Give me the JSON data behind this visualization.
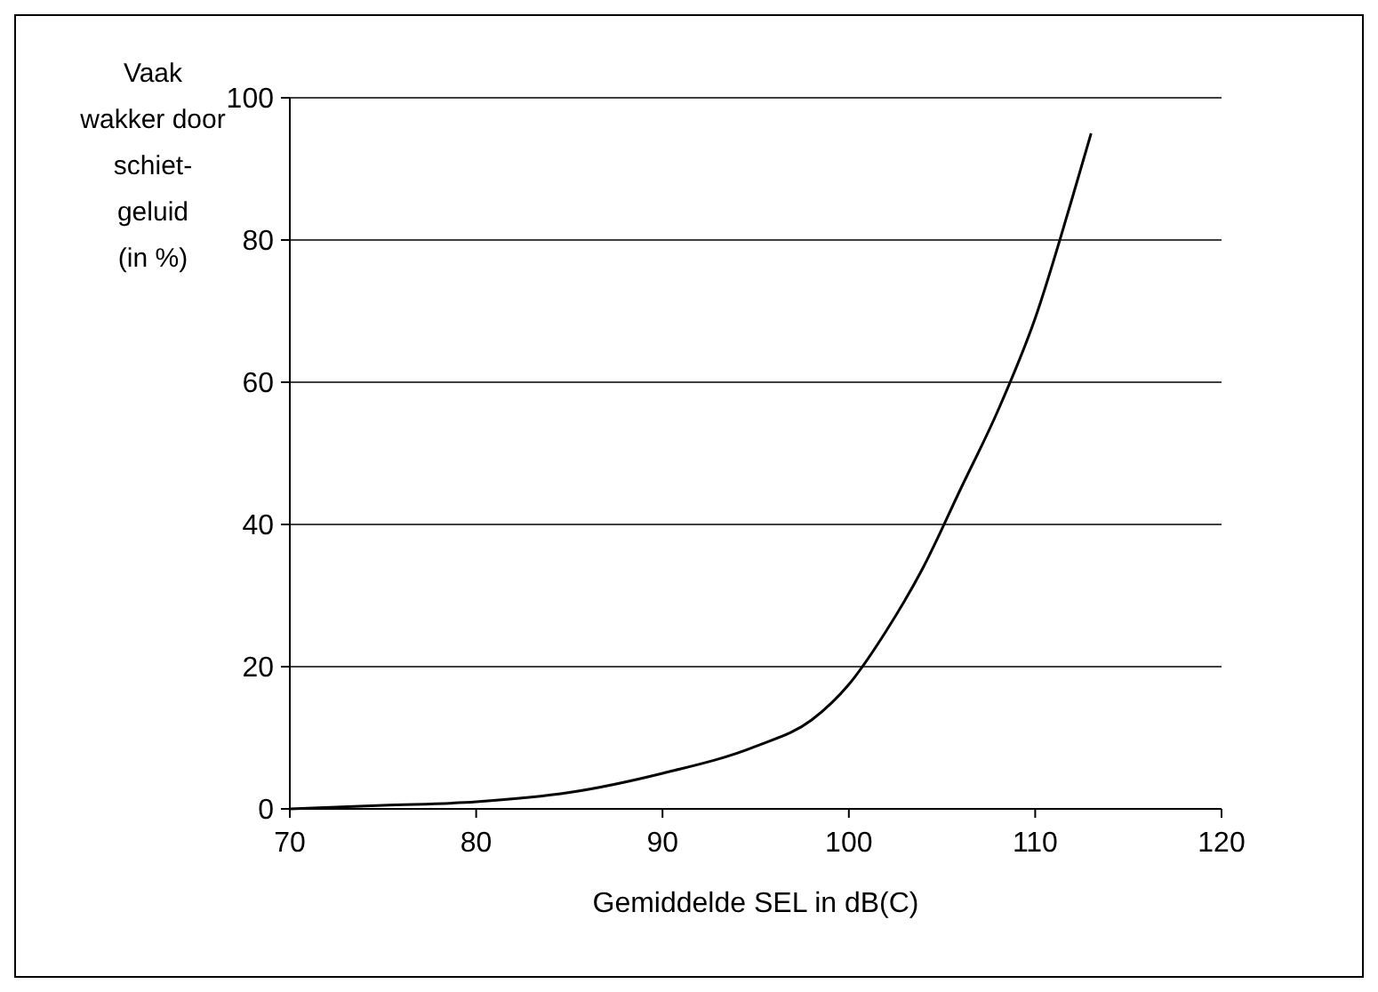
{
  "chart_data": {
    "type": "line",
    "xlabel": "Gemiddelde SEL in dB(C)",
    "ylabel": "Vaak\nwakker door\nschiet-\ngeluid\n(in %)",
    "series": [
      {
        "color": "#000000",
        "x": [
          70,
          75,
          80,
          85,
          90,
          95,
          98,
          100,
          102,
          104,
          106,
          108,
          110,
          112,
          113
        ],
        "values": [
          0,
          0.5,
          1,
          2.3,
          5,
          8.8,
          12.5,
          17.5,
          25,
          34,
          45,
          56,
          69,
          86,
          95
        ]
      }
    ],
    "xlim": [
      70,
      120
    ],
    "xticks": [
      70,
      80,
      90,
      100,
      110,
      120
    ],
    "ylim": [
      0,
      100
    ],
    "yticks": [
      0,
      20,
      40,
      60,
      80,
      100
    ],
    "grid": "y",
    "marker": "none",
    "line_style": "solid"
  }
}
